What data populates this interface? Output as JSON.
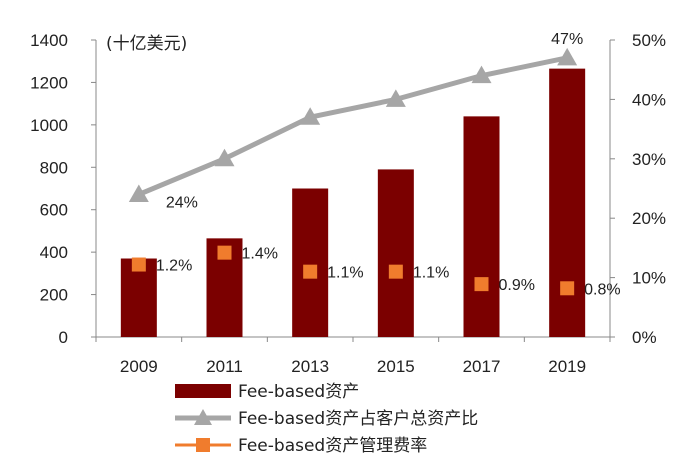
{
  "chart_data": {
    "type": "bar",
    "unit_label": "(十亿美元)",
    "categories": [
      "2009",
      "2011",
      "2013",
      "2015",
      "2017",
      "2019"
    ],
    "ylim_left": [
      0,
      1400
    ],
    "yticks_left": [
      "0",
      "200",
      "400",
      "600",
      "800",
      "1000",
      "1200",
      "1400"
    ],
    "ylim_right": [
      0,
      50
    ],
    "yticks_right": [
      "0%",
      "10%",
      "20%",
      "30%",
      "40%",
      "50%"
    ],
    "series": [
      {
        "name": "Fee-based资产",
        "type": "bar",
        "axis": "left",
        "values": [
          370,
          465,
          700,
          790,
          1040,
          1265
        ],
        "color": "#7b0000"
      },
      {
        "name": "Fee-based资产占客户总资产比",
        "type": "line",
        "axis": "right",
        "values": [
          24,
          30,
          37,
          40,
          44,
          47
        ],
        "labels": [
          "24%",
          "",
          "",
          "",
          "",
          "47%"
        ],
        "color": "#a6a6a6"
      },
      {
        "name": "Fee-based资产管理费率",
        "type": "scatter",
        "axis": "right",
        "values": [
          1.2,
          1.4,
          1.1,
          1.1,
          0.9,
          0.8
        ],
        "plot_positions_pct": [
          12.2,
          14.2,
          11.0,
          11.0,
          8.9,
          8.2
        ],
        "labels": [
          "1.2%",
          "1.4%",
          "1.1%",
          "1.1%",
          "0.9%",
          "0.8%"
        ],
        "color": "#f07c2d"
      }
    ],
    "legend_position": "bottom",
    "grid": false
  }
}
